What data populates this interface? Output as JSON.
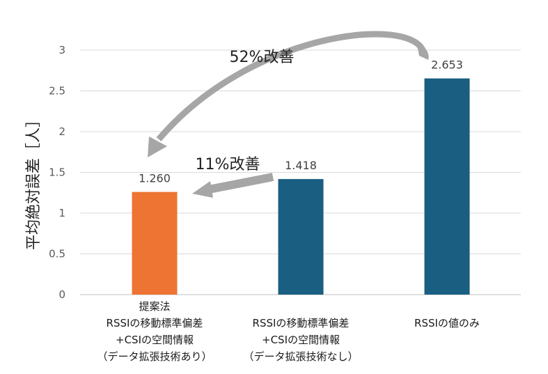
{
  "chart_data": {
    "type": "bar",
    "ylabel": "平均絶対誤差［人］",
    "ylim": [
      0,
      3
    ],
    "yticks": [
      "0",
      "0.5",
      "1",
      "1.5",
      "2",
      "2.5",
      "3"
    ],
    "categories": [
      [
        "提案法",
        "RSSIの移動標準偏差",
        "+CSIの空間情報",
        "（データ拡張技術あり）"
      ],
      [
        "RSSIの移動標準偏差",
        "+CSIの空間情報",
        "（データ拡張技術なし）"
      ],
      [
        "RSSIの値のみ"
      ]
    ],
    "values": [
      1.26,
      1.418,
      2.653
    ],
    "data_labels": [
      "1.260",
      "1.418",
      "2.653"
    ],
    "colors": [
      "#ED7433",
      "#1A5E82",
      "#1A5E82"
    ],
    "grid": true,
    "annotations": [
      {
        "text": "52%改善",
        "from": "RSSIの値のみ",
        "to": "提案法"
      },
      {
        "text": "11%改善",
        "from": "RSSIの移動標準偏差+CSIの空間情報（データ拡張技術なし）",
        "to": "提案法"
      }
    ]
  }
}
